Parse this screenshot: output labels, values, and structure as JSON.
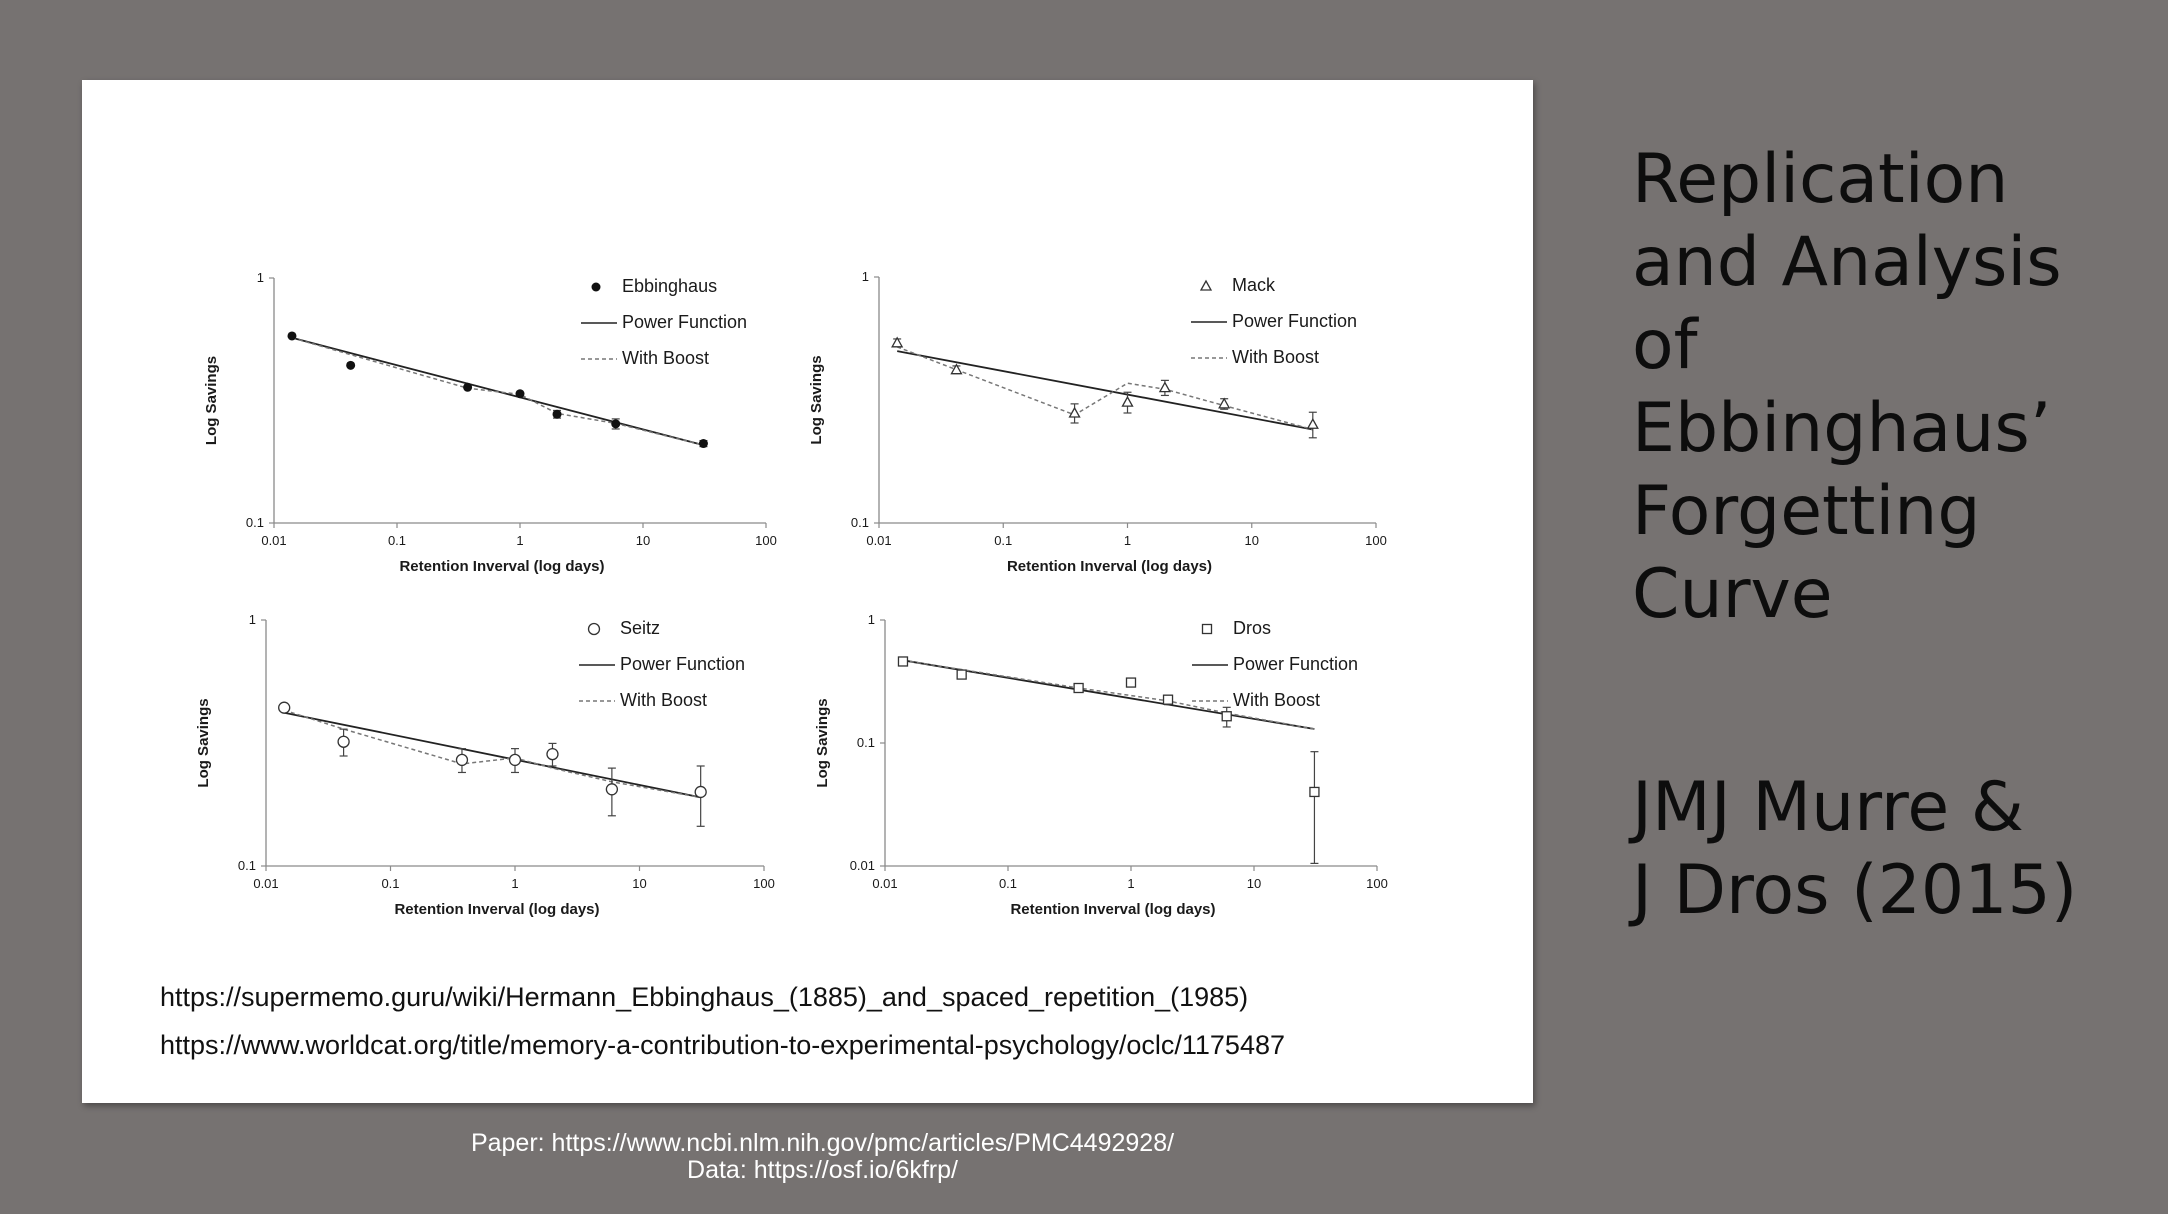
{
  "slide": {
    "title_lines": [
      "Replication",
      "and Analysis",
      "of",
      "Ebbinghaus’",
      "Forgetting",
      "Curve"
    ],
    "author_lines": [
      "JMJ Murre &",
      "J Dros (2015)"
    ],
    "links": [
      "https://supermemo.guru/wiki/Hermann_Ebbinghaus_(1885)_and_spaced_repetition_(1985)",
      "https://www.worldcat.org/title/memory-a-contribution-to-experimental-psychology/oclc/1175487"
    ],
    "footer_lines": [
      "Paper: https://www.ncbi.nlm.nih.gov/pmc/articles/PMC4492928/",
      "Data: https://osf.io/6kfrp/"
    ],
    "colors": {
      "background": "#767271",
      "panel": "#ffffff",
      "ink": "#1a1a1a"
    }
  },
  "chart_data": [
    {
      "type": "scatter",
      "xlabel": "Retention Inverval (log days)",
      "ylabel": "Log Savings",
      "x_scale": "log",
      "y_scale": "log",
      "xlim": [
        0.01,
        100
      ],
      "ylim": [
        0.1,
        1
      ],
      "x_ticks": [
        "0.01",
        "0.1",
        "1",
        "10",
        "100"
      ],
      "y_ticks": [
        "0.1",
        "1"
      ],
      "legend_position": "top-right",
      "marker": "filled-circle",
      "legend": [
        "Ebbinghaus",
        "Power Function",
        "With Boost"
      ],
      "points": [
        {
          "x": 0.014,
          "y": 0.58,
          "err": 0
        },
        {
          "x": 0.042,
          "y": 0.44,
          "err": 0
        },
        {
          "x": 0.375,
          "y": 0.358,
          "err": 0
        },
        {
          "x": 1,
          "y": 0.337,
          "err": 0
        },
        {
          "x": 2,
          "y": 0.278,
          "err": 0.01
        },
        {
          "x": 6,
          "y": 0.254,
          "err": 0.012
        },
        {
          "x": 31,
          "y": 0.211,
          "err": 0.006
        }
      ],
      "power": [
        [
          0.014,
          0.57
        ],
        [
          31,
          0.208
        ]
      ],
      "boost": [
        [
          0.014,
          0.57
        ],
        [
          0.375,
          0.355
        ],
        [
          1,
          0.335
        ],
        [
          2,
          0.28
        ],
        [
          6,
          0.255
        ],
        [
          31,
          0.208
        ]
      ]
    },
    {
      "type": "scatter",
      "xlabel": "Retention Inverval (log days)",
      "ylabel": "Log Savings",
      "x_scale": "log",
      "y_scale": "log",
      "xlim": [
        0.01,
        100
      ],
      "ylim": [
        0.1,
        1
      ],
      "x_ticks": [
        "0.01",
        "0.1",
        "1",
        "10",
        "100"
      ],
      "y_ticks": [
        "0.1",
        "1"
      ],
      "legend_position": "top-right",
      "marker": "triangle",
      "legend": [
        "Mack",
        "Power Function",
        "With Boost"
      ],
      "points": [
        {
          "x": 0.014,
          "y": 0.54,
          "err": 0.02
        },
        {
          "x": 0.042,
          "y": 0.42,
          "err": 0.015
        },
        {
          "x": 0.375,
          "y": 0.28,
          "err": 0.025
        },
        {
          "x": 1,
          "y": 0.31,
          "err": 0.03
        },
        {
          "x": 2,
          "y": 0.355,
          "err": 0.025
        },
        {
          "x": 6,
          "y": 0.305,
          "err": 0.015
        },
        {
          "x": 31,
          "y": 0.252,
          "err": 0.03
        }
      ],
      "power": [
        [
          0.014,
          0.5
        ],
        [
          31,
          0.24
        ]
      ],
      "boost": [
        [
          0.014,
          0.52
        ],
        [
          0.042,
          0.42
        ],
        [
          0.375,
          0.275
        ],
        [
          1,
          0.37
        ],
        [
          2,
          0.35
        ],
        [
          6,
          0.3
        ],
        [
          31,
          0.24
        ]
      ]
    },
    {
      "type": "scatter",
      "xlabel": "Retention Inverval (log days)",
      "ylabel": "Log Savings",
      "x_scale": "log",
      "y_scale": "log",
      "xlim": [
        0.01,
        100
      ],
      "ylim": [
        0.1,
        1
      ],
      "x_ticks": [
        "0.01",
        "0.1",
        "1",
        "10",
        "100"
      ],
      "y_ticks": [
        "0.1",
        "1"
      ],
      "legend_position": "top-right",
      "marker": "open-circle",
      "legend": [
        "Seitz",
        "Power Function",
        "With Boost"
      ],
      "points": [
        {
          "x": 0.014,
          "y": 0.44,
          "err": 0.015
        },
        {
          "x": 0.042,
          "y": 0.32,
          "err": 0.04
        },
        {
          "x": 0.375,
          "y": 0.27,
          "err": 0.03
        },
        {
          "x": 1,
          "y": 0.27,
          "err": 0.03
        },
        {
          "x": 2,
          "y": 0.285,
          "err": 0.03
        },
        {
          "x": 6,
          "y": 0.205,
          "err": 0.045
        },
        {
          "x": 31,
          "y": 0.2,
          "err": 0.055
        }
      ],
      "power": [
        [
          0.014,
          0.42
        ],
        [
          31,
          0.19
        ]
      ],
      "boost": [
        [
          0.014,
          0.43
        ],
        [
          0.042,
          0.36
        ],
        [
          0.375,
          0.26
        ],
        [
          1,
          0.275
        ],
        [
          2,
          0.25
        ],
        [
          6,
          0.22
        ],
        [
          31,
          0.19
        ]
      ]
    },
    {
      "type": "scatter",
      "xlabel": "Retention Inverval (log days)",
      "ylabel": "Log Savings",
      "x_scale": "log",
      "y_scale": "log",
      "xlim": [
        0.01,
        100
      ],
      "ylim": [
        0.01,
        1
      ],
      "x_ticks": [
        "0.01",
        "0.1",
        "1",
        "10",
        "100"
      ],
      "y_ticks": [
        "0.01",
        "0.1",
        "1"
      ],
      "legend_position": "top-right",
      "marker": "square",
      "legend": [
        "Dros",
        "Power Function",
        "With Boost"
      ],
      "points": [
        {
          "x": 0.014,
          "y": 0.46,
          "err": 0.02
        },
        {
          "x": 0.042,
          "y": 0.36,
          "err": 0.02
        },
        {
          "x": 0.375,
          "y": 0.28,
          "err": 0.015
        },
        {
          "x": 1,
          "y": 0.31,
          "err": 0.02
        },
        {
          "x": 2,
          "y": 0.225,
          "err": 0.02
        },
        {
          "x": 6,
          "y": 0.165,
          "err": 0.03
        },
        {
          "x": 31,
          "y": 0.04,
          "err": 0.045
        }
      ],
      "power": [
        [
          0.014,
          0.47
        ],
        [
          31,
          0.13
        ]
      ],
      "boost": [
        [
          0.014,
          0.47
        ],
        [
          0.375,
          0.28
        ],
        [
          2,
          0.22
        ],
        [
          6,
          0.175
        ],
        [
          31,
          0.13
        ]
      ]
    }
  ]
}
